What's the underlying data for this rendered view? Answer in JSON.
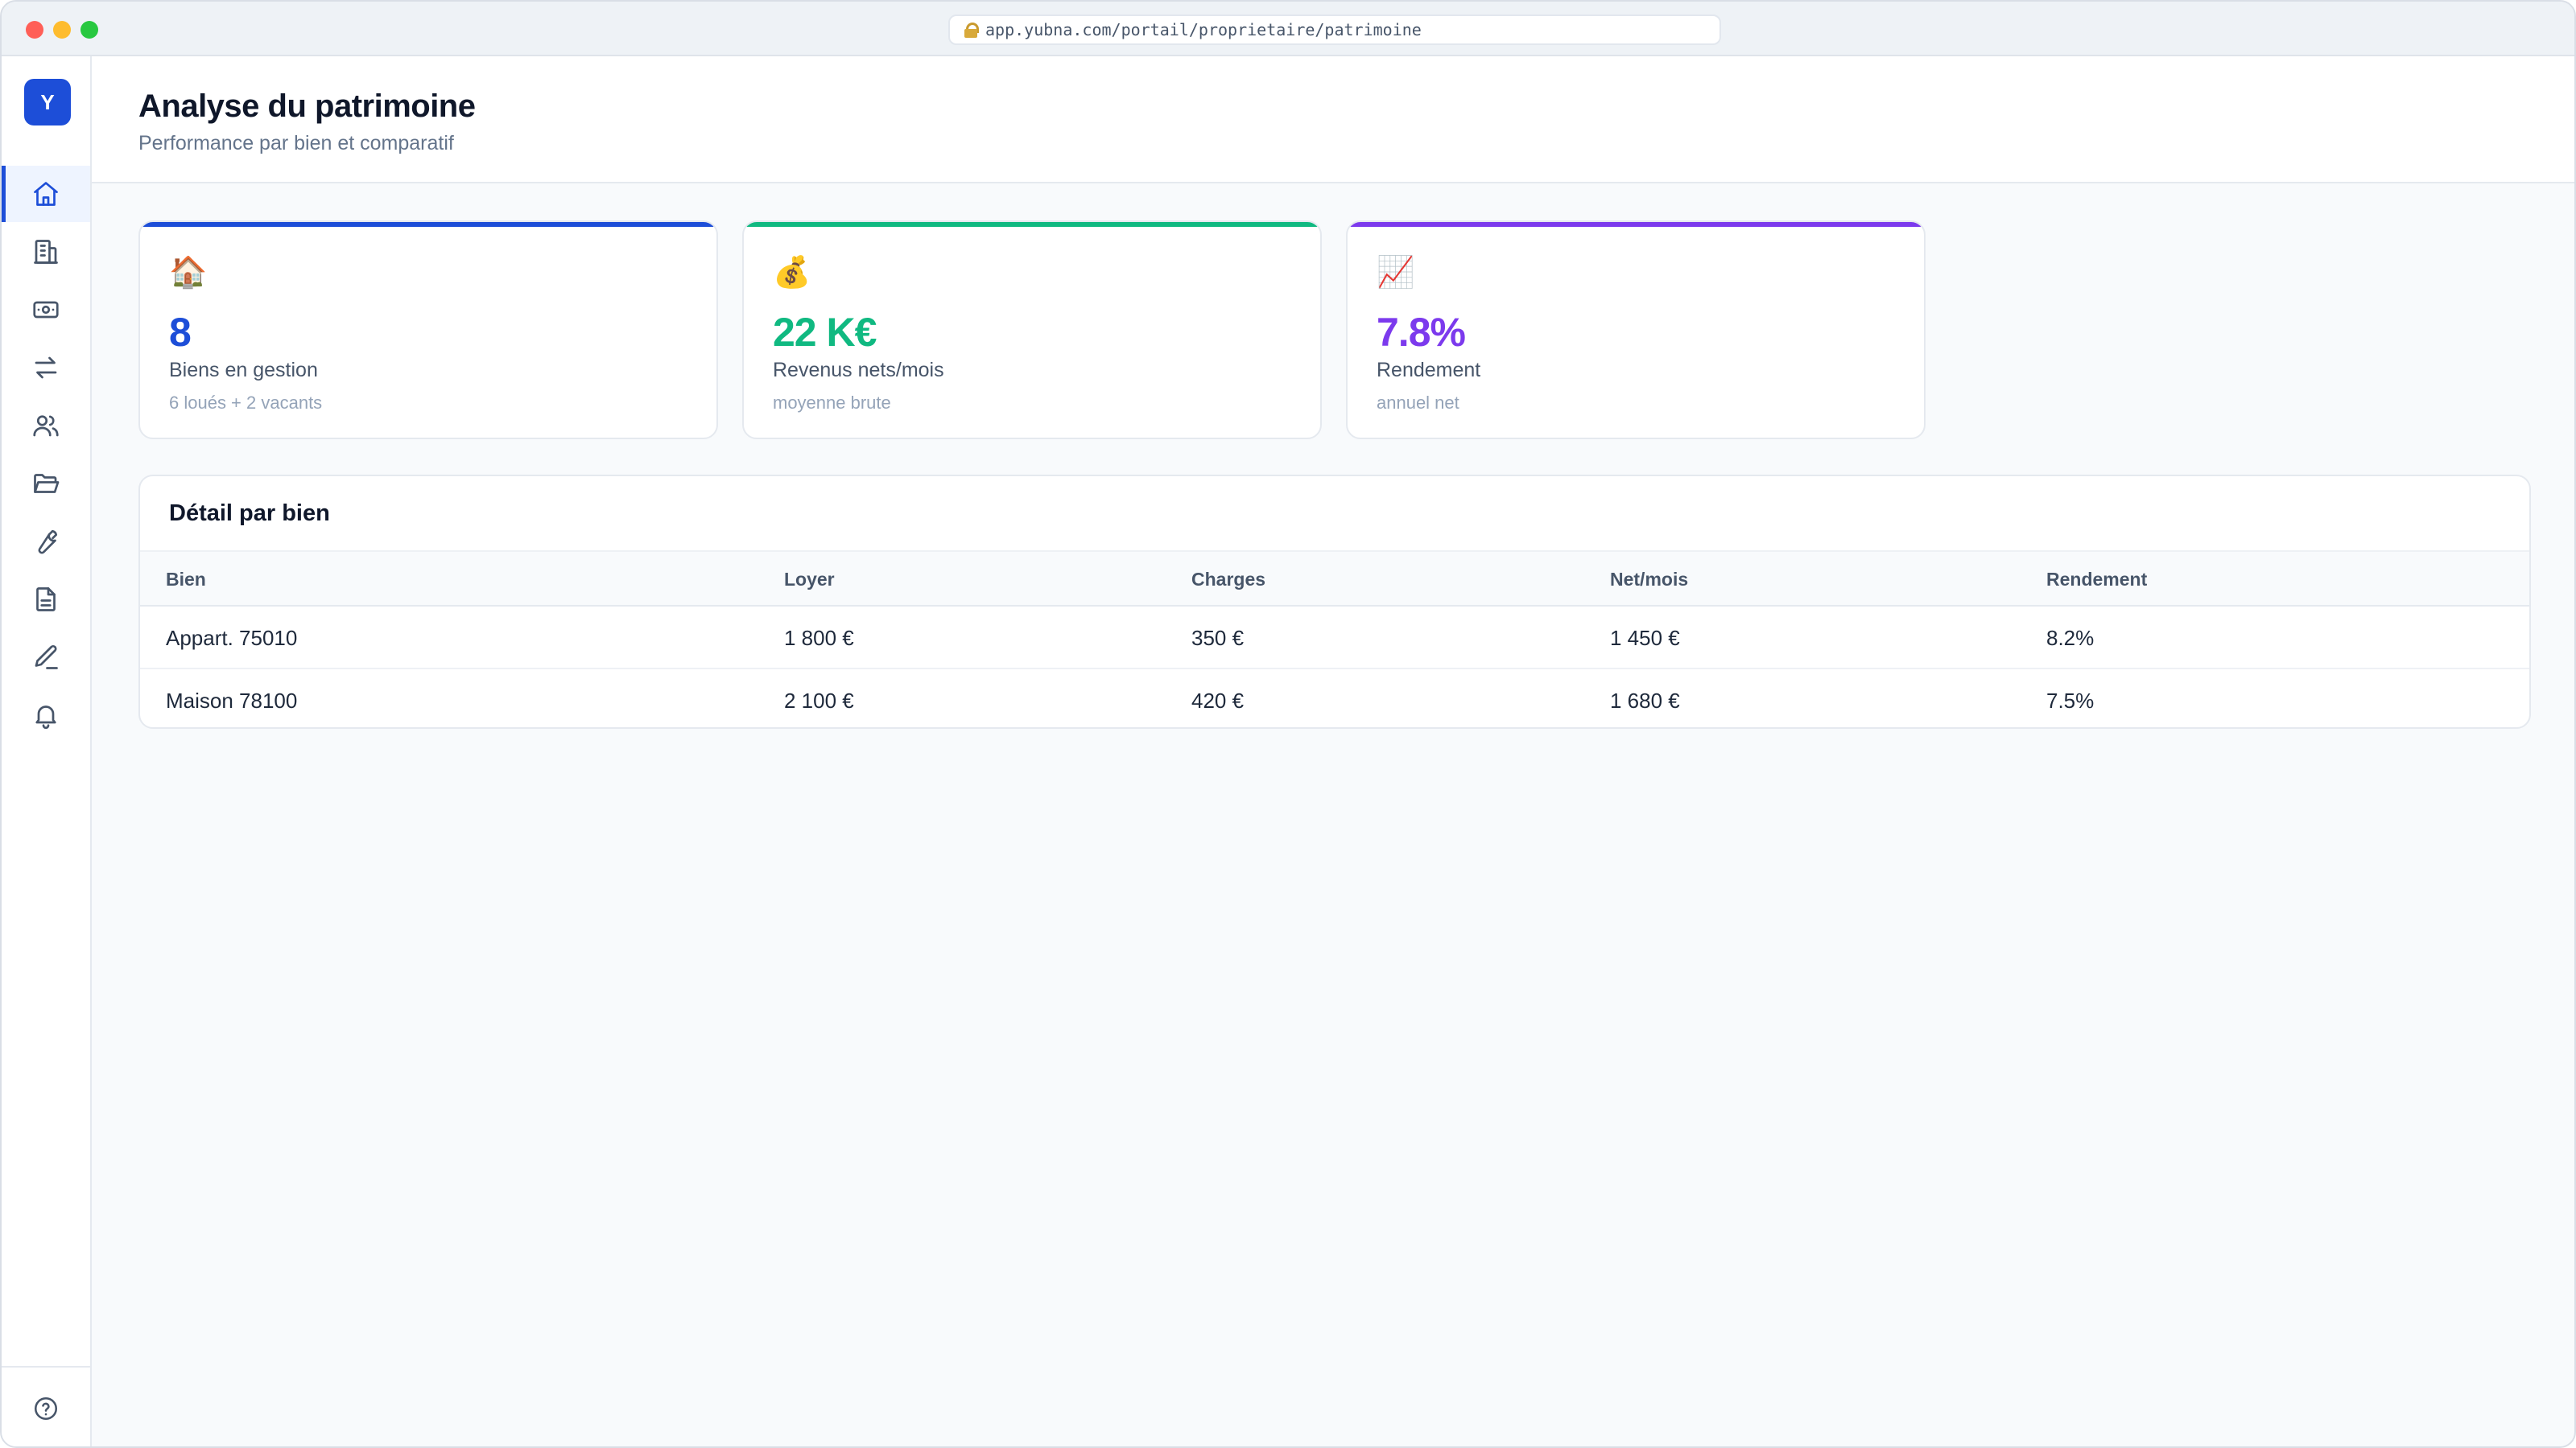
{
  "browser": {
    "url": "app.yubna.com/portail/proprietaire/patrimoine"
  },
  "sidebar": {
    "logo_letter": "Y",
    "items": [
      {
        "name": "home",
        "icon": "home-icon",
        "active": true
      },
      {
        "name": "buildings",
        "icon": "building-icon",
        "active": false
      },
      {
        "name": "payments",
        "icon": "banknote-icon",
        "active": false
      },
      {
        "name": "transfers",
        "icon": "arrows-exchange-icon",
        "active": false
      },
      {
        "name": "tenants",
        "icon": "users-icon",
        "active": false
      },
      {
        "name": "documents-folder",
        "icon": "folder-open-icon",
        "active": false
      },
      {
        "name": "maintenance",
        "icon": "wrench-icon",
        "active": false
      },
      {
        "name": "documents",
        "icon": "file-text-icon",
        "active": false
      },
      {
        "name": "signature",
        "icon": "pen-icon",
        "active": false
      },
      {
        "name": "notifications",
        "icon": "bell-icon",
        "active": false
      }
    ],
    "footer_icon": "help-circle-icon"
  },
  "header": {
    "title": "Analyse du patrimoine",
    "subtitle": "Performance par bien et comparatif"
  },
  "stats": [
    {
      "emoji": "🏠",
      "value": "8",
      "label": "Biens en gestion",
      "sub": "6 loués + 2 vacants",
      "accent": "#1d4ed8",
      "value_color": "#1d4ed8"
    },
    {
      "emoji": "💰",
      "value": "22 K€",
      "label": "Revenus nets/mois",
      "sub": "moyenne brute",
      "accent": "#10b981",
      "value_color": "#10b981"
    },
    {
      "emoji": "📈",
      "value": "7.8%",
      "label": "Rendement",
      "sub": "annuel net",
      "accent": "#7c3aed",
      "value_color": "#7c3aed"
    }
  ],
  "table": {
    "title": "Détail par bien",
    "columns": [
      "Bien",
      "Loyer",
      "Charges",
      "Net/mois",
      "Rendement"
    ],
    "rows": [
      [
        "Appart. 75010",
        "1 800 €",
        "350 €",
        "1 450 €",
        "8.2%"
      ],
      [
        "Maison 78100",
        "2 100 €",
        "420 €",
        "1 680 €",
        "7.5%"
      ]
    ]
  }
}
